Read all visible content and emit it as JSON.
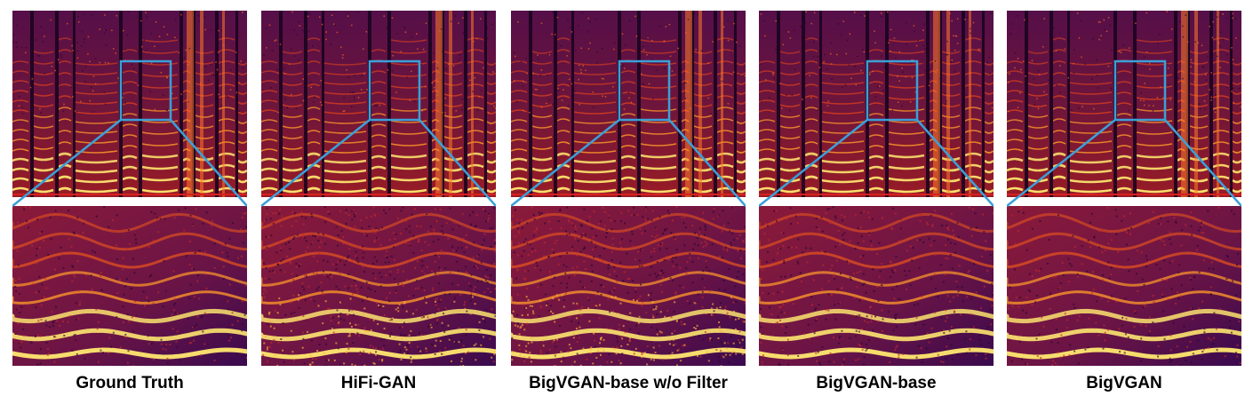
{
  "panels": [
    {
      "caption": "Ground Truth",
      "variant": "clean"
    },
    {
      "caption": "HiFi-GAN",
      "variant": "noisy"
    },
    {
      "caption": "BigVGAN-base w/o Filter",
      "variant": "noisy"
    },
    {
      "caption": "BigVGAN-base",
      "variant": "mild"
    },
    {
      "caption": "BigVGAN",
      "variant": "clean"
    }
  ],
  "colors": {
    "zoom_box": "#3ba0d8",
    "spectrogram_bg": "#3a0a4a",
    "harmonic_bright": "#ffe870",
    "harmonic_mid": "#f25a1a"
  }
}
